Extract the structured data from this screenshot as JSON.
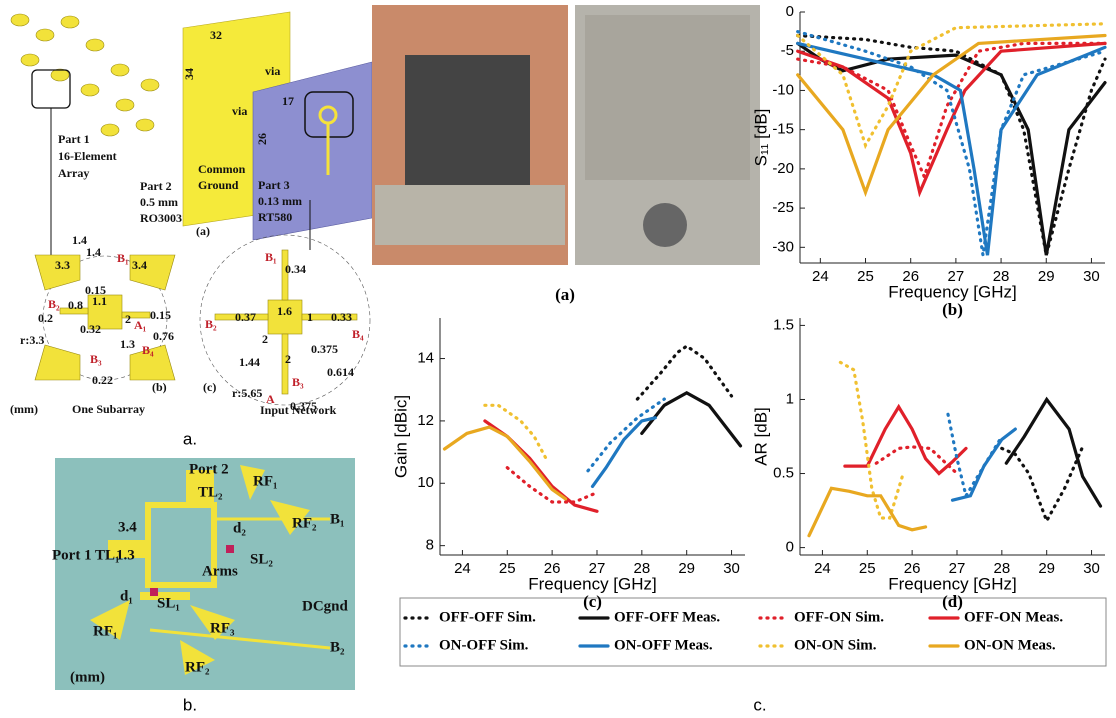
{
  "figure_a": {
    "labels": [
      "32",
      "34",
      "via",
      "via",
      "17",
      "26",
      "Part 1",
      "16-Element",
      "Array",
      "Part 2",
      "0.5 mm",
      "RO3003",
      "Common",
      "Ground",
      "Part 3",
      "0.13 mm",
      "RT580",
      "(a)",
      "1.4",
      "1.4",
      "3.3",
      "3.4",
      "B₁",
      "0.15",
      "1.1",
      "0.8",
      "B₂",
      "0.2",
      "2",
      "A₁",
      "0.15",
      "0.32",
      "1.3",
      "0.76",
      "B₄",
      "r:3.3",
      "B₃",
      "0.22",
      "(mm)",
      "One Subarray",
      "(b)",
      "B₁",
      "0.34",
      "0.37",
      "1.6",
      "1",
      "0.33",
      "B₂",
      "2",
      "0.375",
      "B₄",
      "1.44",
      "2",
      "0.614",
      "r:5.65",
      "B₃",
      "A",
      "0.375",
      "Input Network",
      "(c)"
    ],
    "caption": "a."
  },
  "figure_b": {
    "labels": [
      "Port 2",
      "TL₂",
      "RF₁",
      "3.4",
      "d₂",
      "B₁",
      "RF₂",
      "Port 1 TL₁",
      "1.3",
      "SL₂",
      "Arms",
      "d₁",
      "SL₁",
      "DCgnd",
      "RF₁",
      "RF₃",
      "B₂",
      "RF₂",
      "(mm)"
    ],
    "caption": "b."
  },
  "photo_label": "(a)",
  "caption_c": "c.",
  "chart_data": [
    {
      "type": "line",
      "xlabel": "Frequency [GHz]",
      "ylabel": "S₁₁ [dB]",
      "panel": "(b)",
      "xlim": [
        23.55,
        30.3
      ],
      "ylim": [
        -32,
        0
      ],
      "xticks": [
        24,
        25,
        26,
        27,
        28,
        29,
        30
      ],
      "yticks": [
        -30,
        -25,
        -20,
        -15,
        -10,
        -5,
        0
      ],
      "series": [
        {
          "name": "OFF-OFF Sim.",
          "color": "#111111",
          "style": "dotted",
          "x": [
            23.5,
            25,
            26,
            27,
            28,
            28.5,
            29,
            29.5,
            30,
            30.3
          ],
          "values": [
            -3,
            -3.5,
            -4.5,
            -5,
            -8,
            -15,
            -31,
            -20,
            -10,
            -6
          ]
        },
        {
          "name": "OFF-OFF Meas.",
          "color": "#111111",
          "style": "solid",
          "x": [
            23.5,
            24,
            24.5,
            25.5,
            27,
            28,
            28.6,
            29,
            29.5,
            30.3
          ],
          "values": [
            -4,
            -6,
            -7.5,
            -6,
            -5.5,
            -8,
            -15,
            -31,
            -15,
            -9
          ]
        },
        {
          "name": "OFF-ON Sim.",
          "color": "#e0202a",
          "style": "dotted",
          "x": [
            23.5,
            24.5,
            25.5,
            26,
            26.3,
            26.8,
            27.5,
            28.5,
            30.3
          ],
          "values": [
            -6,
            -7,
            -10,
            -17,
            -21,
            -12,
            -5,
            -4,
            -4
          ]
        },
        {
          "name": "OFF-ON Meas.",
          "color": "#e0202a",
          "style": "solid",
          "x": [
            23.5,
            24.5,
            25.5,
            26,
            26.2,
            26.8,
            27.2,
            28,
            30.3
          ],
          "values": [
            -5,
            -7,
            -11,
            -18,
            -23,
            -15,
            -10,
            -5,
            -4
          ]
        },
        {
          "name": "ON-OFF Sim.",
          "color": "#1f78c1",
          "style": "dotted",
          "x": [
            23.5,
            25,
            26,
            26.8,
            27.3,
            27.6,
            28,
            28.5,
            30.3
          ],
          "values": [
            -2.5,
            -5,
            -7,
            -10,
            -20,
            -31,
            -15,
            -8,
            -5
          ]
        },
        {
          "name": "ON-OFF Meas.",
          "color": "#1f78c1",
          "style": "solid",
          "x": [
            23.5,
            25,
            26.5,
            27.1,
            27.4,
            27.7,
            28,
            28.8,
            30.3
          ],
          "values": [
            -4,
            -6,
            -8,
            -10,
            -20,
            -31,
            -15,
            -8,
            -4.5
          ]
        },
        {
          "name": "ON-ON Sim.",
          "color": "#f0c030",
          "style": "dotted",
          "x": [
            23.5,
            24.5,
            25,
            25.5,
            26,
            27,
            30.3
          ],
          "values": [
            -3,
            -8,
            -17,
            -12,
            -5,
            -2,
            -1.5
          ]
        },
        {
          "name": "ON-ON Meas.",
          "color": "#e8a820",
          "style": "solid",
          "x": [
            23.5,
            24.5,
            25,
            25.5,
            26.5,
            27.5,
            30.3
          ],
          "values": [
            -8,
            -15,
            -23,
            -15,
            -8,
            -4,
            -3
          ]
        }
      ]
    },
    {
      "type": "line",
      "xlabel": "Frequency [GHz]",
      "ylabel": "Gain [dBic]",
      "panel": "(c)",
      "xlim": [
        23.5,
        30.3
      ],
      "ylim": [
        7.7,
        15.3
      ],
      "xticks": [
        24,
        25,
        26,
        27,
        28,
        29,
        30
      ],
      "yticks": [
        8,
        10,
        12,
        14
      ],
      "series": [
        {
          "color": "#111111",
          "style": "dotted",
          "x": [
            27.9,
            28.4,
            28.8,
            29,
            29.4,
            30
          ],
          "values": [
            12.7,
            13.5,
            14.2,
            14.4,
            14,
            12.8
          ]
        },
        {
          "color": "#111111",
          "style": "solid",
          "x": [
            28,
            28.5,
            29,
            29.5,
            30.2
          ],
          "values": [
            11.6,
            12.5,
            12.9,
            12.5,
            11.2
          ]
        },
        {
          "color": "#e0202a",
          "style": "dotted",
          "x": [
            25,
            25.5,
            26,
            26.5,
            27
          ],
          "values": [
            10.5,
            9.9,
            9.4,
            9.4,
            9.7
          ]
        },
        {
          "color": "#e0202a",
          "style": "solid",
          "x": [
            24.5,
            25,
            25.5,
            26,
            26.5,
            27
          ],
          "values": [
            12,
            11.5,
            10.8,
            9.9,
            9.3,
            9.1
          ]
        },
        {
          "color": "#1f78c1",
          "style": "dotted",
          "x": [
            26.8,
            27.3,
            27.9,
            28.5
          ],
          "values": [
            10.4,
            11.3,
            12.1,
            12.7
          ]
        },
        {
          "color": "#1f78c1",
          "style": "solid",
          "x": [
            26.9,
            27.2,
            27.6,
            28,
            28.3
          ],
          "values": [
            9.9,
            10.5,
            11.4,
            12,
            12.1
          ]
        },
        {
          "color": "#f0c030",
          "style": "dotted",
          "x": [
            24.5,
            24.8,
            25.3,
            25.6,
            25.9
          ],
          "values": [
            12.5,
            12.5,
            12,
            11.5,
            10.7
          ]
        },
        {
          "color": "#e8a820",
          "style": "solid",
          "x": [
            23.6,
            24.1,
            24.6,
            25,
            25.5,
            26,
            26.3
          ],
          "values": [
            11.1,
            11.6,
            11.8,
            11.5,
            10.7,
            9.8,
            9.5
          ]
        }
      ]
    },
    {
      "type": "line",
      "xlabel": "Frequency [GHz]",
      "ylabel": "AR [dB]",
      "panel": "(d)",
      "xlim": [
        23.5,
        30.3
      ],
      "ylim": [
        -0.05,
        1.55
      ],
      "xticks": [
        24,
        25,
        26,
        27,
        28,
        29,
        30
      ],
      "yticks": [
        0,
        0.5,
        1,
        1.5
      ],
      "series": [
        {
          "color": "#111111",
          "style": "dotted",
          "x": [
            28,
            28.3,
            28.6,
            29,
            29.4,
            29.8
          ],
          "values": [
            0.67,
            0.63,
            0.5,
            0.18,
            0.4,
            0.68
          ]
        },
        {
          "color": "#111111",
          "style": "solid",
          "x": [
            28.1,
            28.5,
            29,
            29.5,
            29.8,
            30.2
          ],
          "values": [
            0.57,
            0.75,
            1.0,
            0.8,
            0.48,
            0.28
          ]
        },
        {
          "color": "#e0202a",
          "style": "dotted",
          "x": [
            25.2,
            25.7,
            26,
            26.4,
            27
          ],
          "values": [
            0.57,
            0.67,
            0.68,
            0.67,
            0.5
          ]
        },
        {
          "color": "#e0202a",
          "style": "solid",
          "x": [
            24.5,
            25,
            25.4,
            25.7,
            26,
            26.3,
            26.6,
            26.9,
            27.2
          ],
          "values": [
            0.55,
            0.55,
            0.8,
            0.95,
            0.8,
            0.6,
            0.5,
            0.58,
            0.67
          ]
        },
        {
          "color": "#1f78c1",
          "style": "dotted",
          "x": [
            26.8,
            27,
            27.2,
            27.6,
            28
          ],
          "values": [
            0.9,
            0.6,
            0.35,
            0.55,
            0.75
          ]
        },
        {
          "color": "#1f78c1",
          "style": "solid",
          "x": [
            26.9,
            27.3,
            27.6,
            28,
            28.3
          ],
          "values": [
            0.32,
            0.35,
            0.55,
            0.73,
            0.8
          ]
        },
        {
          "color": "#f0c030",
          "style": "dotted",
          "x": [
            24.4,
            24.7,
            24.9,
            25.1,
            25.3,
            25.5,
            25.8
          ],
          "values": [
            1.25,
            1.2,
            0.85,
            0.4,
            0.2,
            0.2,
            0.5
          ]
        },
        {
          "color": "#e8a820",
          "style": "solid",
          "x": [
            23.7,
            24.2,
            24.6,
            25,
            25.3,
            25.7,
            26,
            26.3
          ],
          "values": [
            0.08,
            0.4,
            0.38,
            0.35,
            0.35,
            0.15,
            0.12,
            0.14
          ]
        }
      ]
    }
  ]
}
